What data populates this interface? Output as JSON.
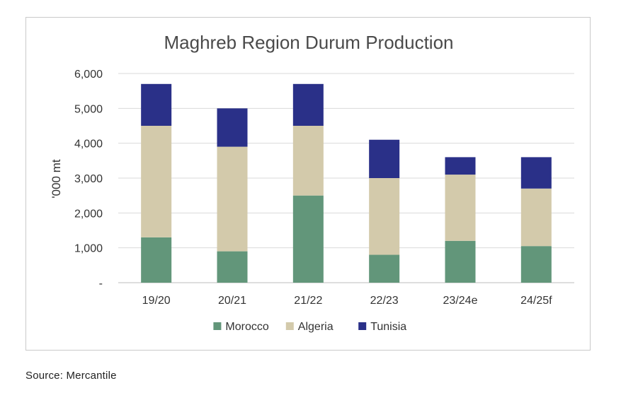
{
  "source_note": "Source: Mercantile",
  "chart_data": {
    "type": "bar",
    "stacked": true,
    "title": "Maghreb Region Durum Production",
    "xlabel": "",
    "ylabel": "'000 mt",
    "categories": [
      "19/20",
      "20/21",
      "21/22",
      "22/23",
      "23/24e",
      "24/25f"
    ],
    "series": [
      {
        "name": "Morocco",
        "color": "#62967a",
        "values": [
          1300,
          900,
          2500,
          800,
          1200,
          1050
        ]
      },
      {
        "name": "Algeria",
        "color": "#d3caab",
        "values": [
          3200,
          3000,
          2000,
          2200,
          1900,
          1650
        ]
      },
      {
        "name": "Tunisia",
        "color": "#2a3088",
        "values": [
          1200,
          1100,
          1200,
          1100,
          500,
          900
        ]
      }
    ],
    "ylim": [
      0,
      6000
    ],
    "yticks": [
      0,
      1000,
      2000,
      3000,
      4000,
      5000,
      6000
    ],
    "ytick_labels": [
      "-",
      "1,000",
      "2,000",
      "3,000",
      "4,000",
      "5,000",
      "6,000"
    ],
    "grid": true,
    "legend_position": "bottom"
  }
}
